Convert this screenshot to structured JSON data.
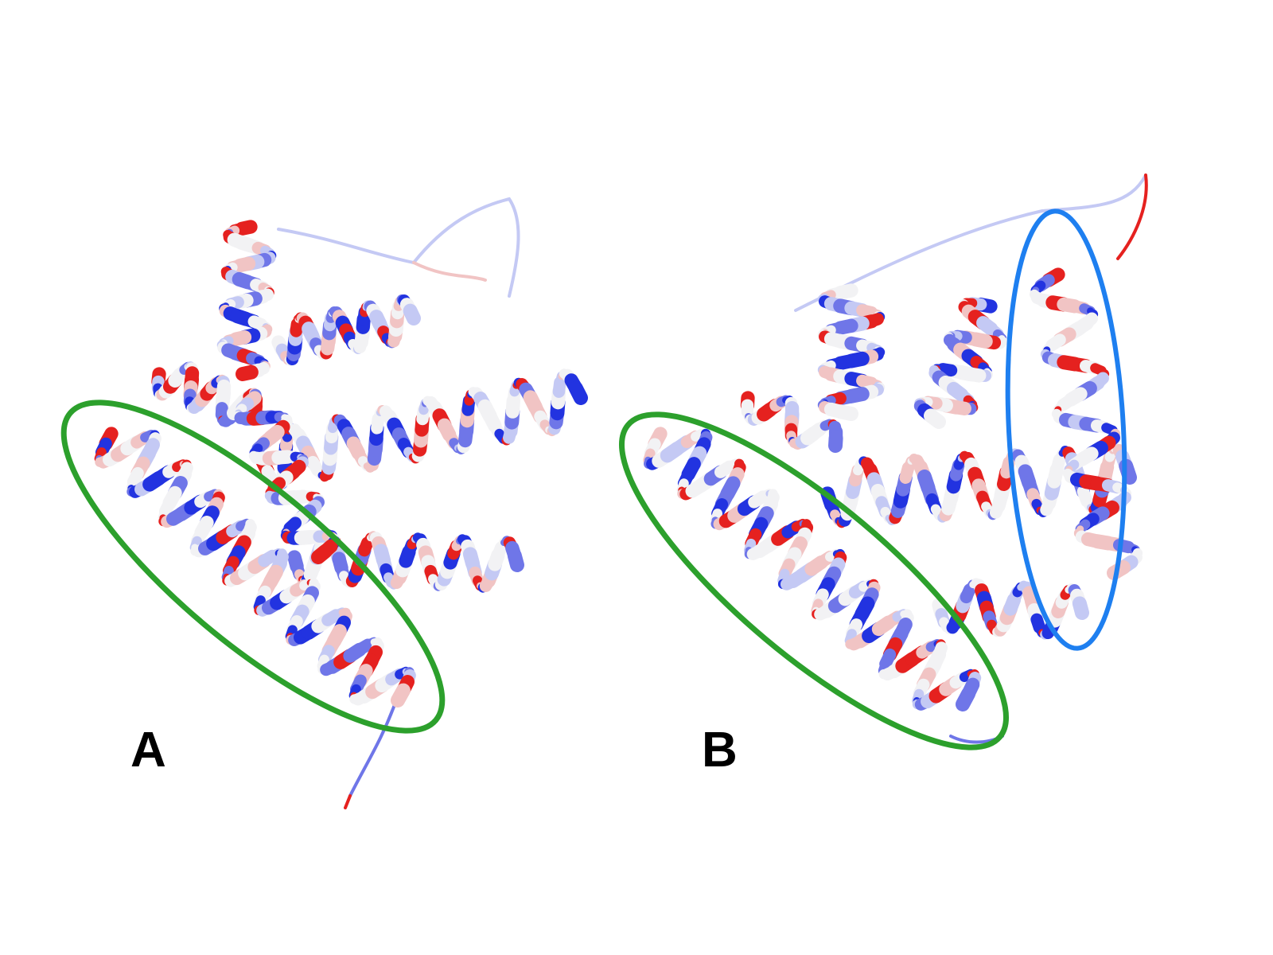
{
  "figure": {
    "panels": [
      {
        "id": "A",
        "label": "A"
      },
      {
        "id": "B",
        "label": "B"
      }
    ],
    "colors": {
      "background": "#ffffff",
      "highlight_green": "#2ca02c",
      "highlight_blue": "#1e7ff0",
      "residue_blue_strong": "#2233e0",
      "residue_blue": "#6f76e8",
      "residue_blue_light": "#c4c9f4",
      "residue_white": "#f2f2f4",
      "residue_pink": "#f1c4c4",
      "residue_red": "#e5211f",
      "label_text": "#000000"
    }
  }
}
